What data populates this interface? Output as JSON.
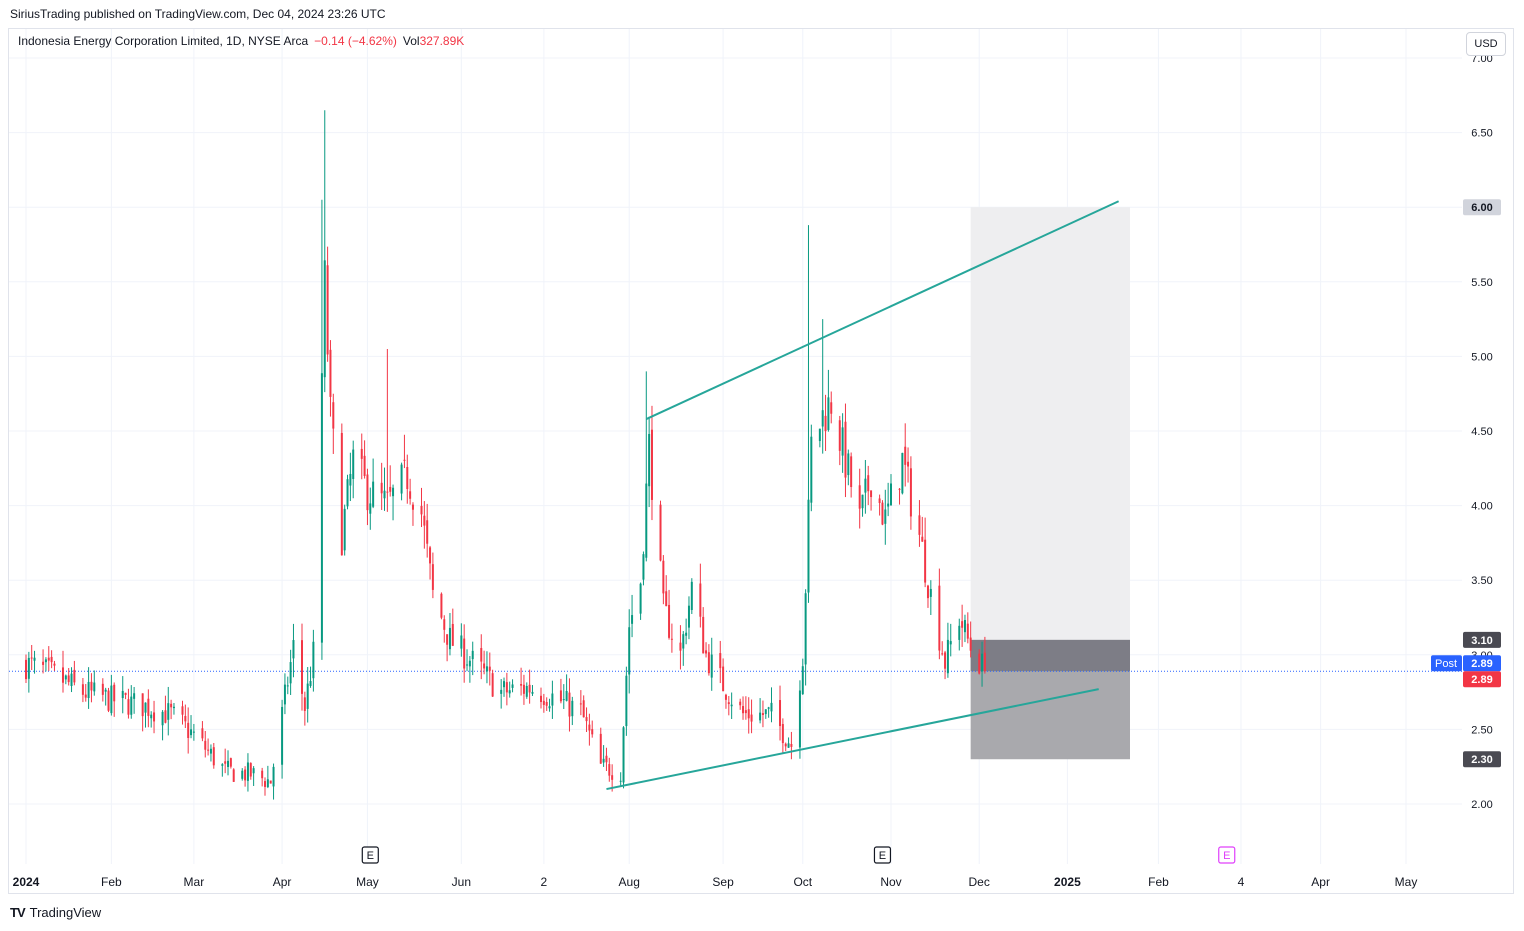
{
  "header": {
    "published": "SiriusTrading published on TradingView.com, Dec 04, 2024 23:26 UTC"
  },
  "legend": {
    "symbol": "Indonesia Energy Corporation Limited, 1D, NYSE Arca",
    "change": "−0.14 (−4.62%)",
    "vol_label": "Vol",
    "vol_value": "327.89K"
  },
  "currency_button": "USD",
  "footer": {
    "brand": "TradingView",
    "logo": "TV"
  },
  "colors": {
    "up": "#089981",
    "down": "#f23645",
    "trendline": "#26a69a",
    "target_zone": "#eeeef0",
    "stop_zone": "#a9a9ad",
    "entry_band": "#7d7d86",
    "last_price_line": "#2962ff"
  },
  "chart_data": {
    "type": "candlestick",
    "title": "Indonesia Energy Corporation Limited, 1D, NYSE Arca",
    "y_axis": {
      "ticks": [
        2.0,
        2.5,
        3.0,
        3.5,
        4.0,
        4.5,
        5.0,
        5.5,
        6.0,
        6.5,
        7.0
      ],
      "labels": [
        "2.00",
        "2.50",
        "3.00",
        "3.50",
        "4.00",
        "4.50",
        "5.00",
        "5.50",
        "6.00",
        "6.50",
        "7.00"
      ],
      "range": [
        1.55,
        7.06
      ]
    },
    "x_axis": {
      "labels": [
        "2024",
        "Feb",
        "Mar",
        "Apr",
        "May",
        "Jun",
        "2",
        "Aug",
        "Sep",
        "Oct",
        "Nov",
        "Dec",
        "2025",
        "Feb",
        "4",
        "Apr",
        "May"
      ],
      "bold": [
        "2024",
        "2025"
      ],
      "dates": [
        "2024-01-02",
        "2024-02-01",
        "2024-03-01",
        "2024-04-01",
        "2024-05-01",
        "2024-06-03",
        "2024-07-02",
        "2024-08-01",
        "2024-09-03",
        "2024-10-01",
        "2024-11-01",
        "2024-12-02",
        "2025-01-02",
        "2025-02-03",
        "2025-03-04",
        "2025-04-01",
        "2025-05-01"
      ]
    },
    "price_labels": [
      {
        "value": 6.0,
        "text": "6.00",
        "style": "grey"
      },
      {
        "value": 3.1,
        "text": "3.10",
        "style": "dark"
      },
      {
        "value": 2.89,
        "text": "2.89",
        "style": "blue",
        "tag": "Post"
      },
      {
        "value": 2.89,
        "text": "2.89",
        "style": "red"
      },
      {
        "value": 2.3,
        "text": "2.30",
        "style": "dark"
      }
    ],
    "last_price": 2.89,
    "position": {
      "start": "2024-11-29",
      "end": "2025-01-24",
      "entry": 3.1,
      "target": 6.0,
      "stop": 2.3
    },
    "trendlines": [
      {
        "from": [
          "2024-08-07",
          4.58
        ],
        "to": [
          "2025-01-20",
          6.04
        ]
      },
      {
        "from": [
          "2024-07-24",
          2.1
        ],
        "to": [
          "2025-01-13",
          2.77
        ]
      }
    ],
    "earnings_markers": [
      {
        "date": "2024-05-02",
        "label": "E",
        "color": "#131722"
      },
      {
        "date": "2024-10-29",
        "label": "E",
        "color": "#131722"
      },
      {
        "date": "2025-02-27",
        "label": "E",
        "color": "#e040fb"
      }
    ],
    "series": [
      {
        "name": "Indonesia Energy Corporation Limited",
        "anchors": [
          [
            "2024-01-02",
            2.94
          ],
          [
            "2024-01-12",
            2.86
          ],
          [
            "2024-01-22",
            2.75
          ],
          [
            "2024-02-01",
            2.7
          ],
          [
            "2024-02-12",
            2.66
          ],
          [
            "2024-02-22",
            2.6
          ],
          [
            "2024-03-01",
            2.46
          ],
          [
            "2024-03-12",
            2.22
          ],
          [
            "2024-03-21",
            2.2
          ],
          [
            "2024-03-28",
            2.15
          ],
          [
            "2024-04-01",
            2.6
          ],
          [
            "2024-04-05",
            3.05
          ],
          [
            "2024-04-09",
            2.65
          ],
          [
            "2024-04-12",
            3.0
          ],
          [
            "2024-04-16",
            5.5
          ],
          [
            "2024-04-18",
            4.6
          ],
          [
            "2024-04-22",
            3.8
          ],
          [
            "2024-04-26",
            4.3
          ],
          [
            "2024-05-01",
            4.1
          ],
          [
            "2024-05-08",
            4.0
          ],
          [
            "2024-05-15",
            4.2
          ],
          [
            "2024-05-20",
            3.95
          ],
          [
            "2024-05-24",
            3.4
          ],
          [
            "2024-05-30",
            3.1
          ],
          [
            "2024-06-07",
            2.95
          ],
          [
            "2024-06-17",
            2.75
          ],
          [
            "2024-06-27",
            2.78
          ],
          [
            "2024-07-05",
            2.72
          ],
          [
            "2024-07-15",
            2.62
          ],
          [
            "2024-07-22",
            2.25
          ],
          [
            "2024-07-29",
            2.22
          ],
          [
            "2024-08-01",
            3.2
          ],
          [
            "2024-08-05",
            3.5
          ],
          [
            "2024-08-08",
            4.4
          ],
          [
            "2024-08-13",
            3.3
          ],
          [
            "2024-08-19",
            3.0
          ],
          [
            "2024-08-23",
            3.45
          ],
          [
            "2024-08-28",
            3.0
          ],
          [
            "2024-09-03",
            2.8
          ],
          [
            "2024-09-10",
            2.6
          ],
          [
            "2024-09-20",
            2.6
          ],
          [
            "2024-09-27",
            2.4
          ],
          [
            "2024-10-01",
            3.0
          ],
          [
            "2024-10-04",
            4.4
          ],
          [
            "2024-10-08",
            4.6
          ],
          [
            "2024-10-11",
            4.7
          ],
          [
            "2024-10-16",
            4.3
          ],
          [
            "2024-10-21",
            3.9
          ],
          [
            "2024-10-25",
            4.2
          ],
          [
            "2024-10-30",
            3.9
          ],
          [
            "2024-11-05",
            4.3
          ],
          [
            "2024-11-11",
            3.8
          ],
          [
            "2024-11-15",
            3.4
          ],
          [
            "2024-11-20",
            2.95
          ],
          [
            "2024-11-25",
            3.25
          ],
          [
            "2024-11-29",
            3.05
          ],
          [
            "2024-12-04",
            2.89
          ]
        ]
      }
    ]
  }
}
